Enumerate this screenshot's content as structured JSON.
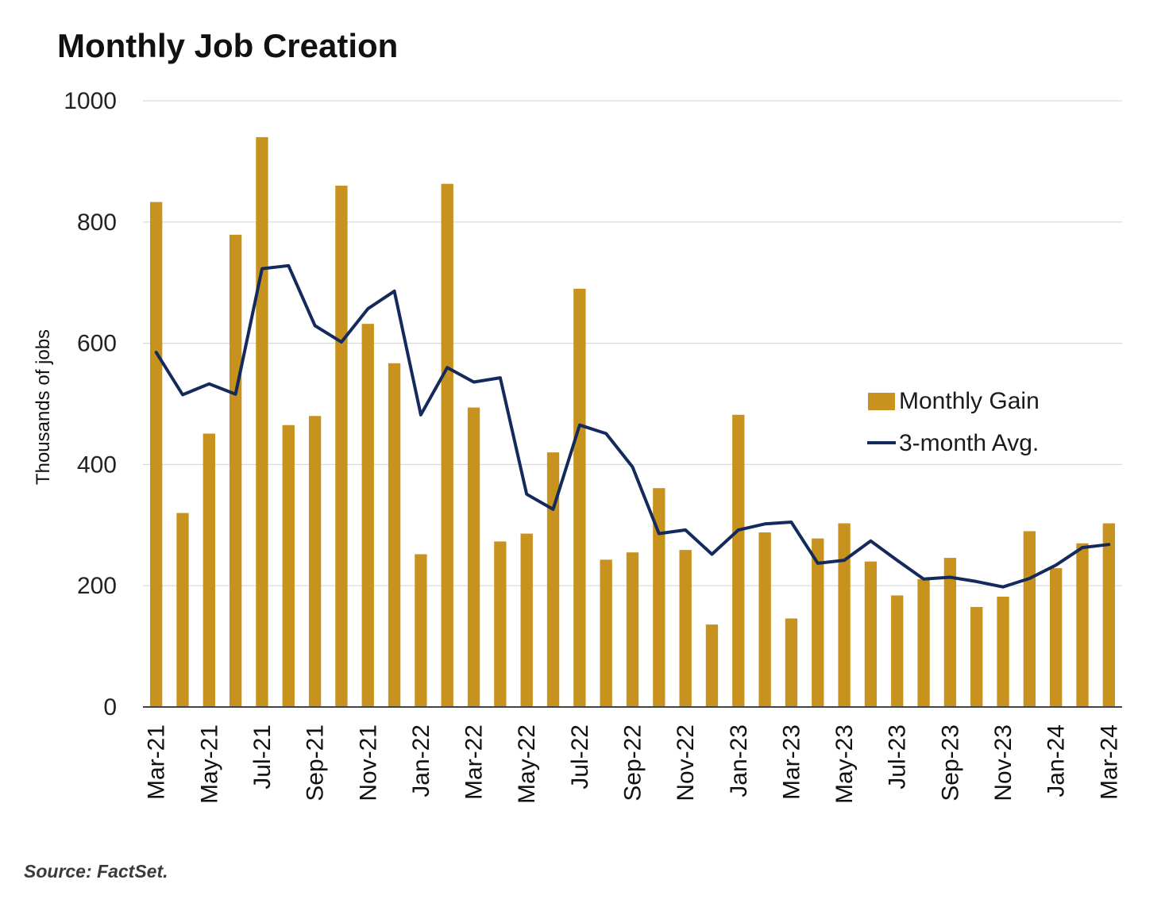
{
  "chart_data": {
    "type": "bar",
    "title": "Monthly Job Creation",
    "ylabel": "Thousands of jobs",
    "xlabel": "",
    "ylim": [
      0,
      1000
    ],
    "yticks": [
      0,
      200,
      400,
      600,
      800,
      1000
    ],
    "grid": true,
    "legend_position": "right",
    "categories": [
      "Mar-21",
      "Apr-21",
      "May-21",
      "Jun-21",
      "Jul-21",
      "Aug-21",
      "Sep-21",
      "Oct-21",
      "Nov-21",
      "Dec-21",
      "Jan-22",
      "Feb-22",
      "Mar-22",
      "Apr-22",
      "May-22",
      "Jun-22",
      "Jul-22",
      "Aug-22",
      "Sep-22",
      "Oct-22",
      "Nov-22",
      "Dec-22",
      "Jan-23",
      "Feb-23",
      "Mar-23",
      "Apr-23",
      "May-23",
      "Jun-23",
      "Jul-23",
      "Aug-23",
      "Sep-23",
      "Oct-23",
      "Nov-23",
      "Dec-23",
      "Jan-24",
      "Feb-24",
      "Mar-24"
    ],
    "tick_labels": [
      "Mar-21",
      "May-21",
      "Jul-21",
      "Sep-21",
      "Nov-21",
      "Jan-22",
      "Mar-22",
      "May-22",
      "Jul-22",
      "Sep-22",
      "Nov-22",
      "Jan-23",
      "Mar-23",
      "May-23",
      "Jul-23",
      "Sep-23",
      "Nov-23",
      "Jan-24",
      "Mar-24"
    ],
    "series": [
      {
        "name": "Monthly Gain",
        "kind": "bar",
        "color": "#C8921E",
        "values": [
          833,
          320,
          451,
          779,
          940,
          465,
          480,
          860,
          632,
          567,
          252,
          863,
          494,
          273,
          286,
          420,
          690,
          243,
          255,
          361,
          259,
          136,
          482,
          288,
          146,
          278,
          303,
          240,
          184,
          211,
          246,
          165,
          182,
          290,
          229,
          270,
          303
        ]
      },
      {
        "name": "3-month Avg.",
        "kind": "line",
        "color": "#142A5C",
        "values": [
          585,
          515,
          533,
          516,
          723,
          728,
          629,
          602,
          657,
          686,
          482,
          560,
          536,
          543,
          351,
          326,
          465,
          451,
          396,
          286,
          292,
          252,
          292,
          302,
          305,
          237,
          242,
          274,
          242,
          211,
          214,
          207,
          198,
          212,
          234,
          263,
          268
        ]
      }
    ],
    "source": "Source: FactSet."
  }
}
